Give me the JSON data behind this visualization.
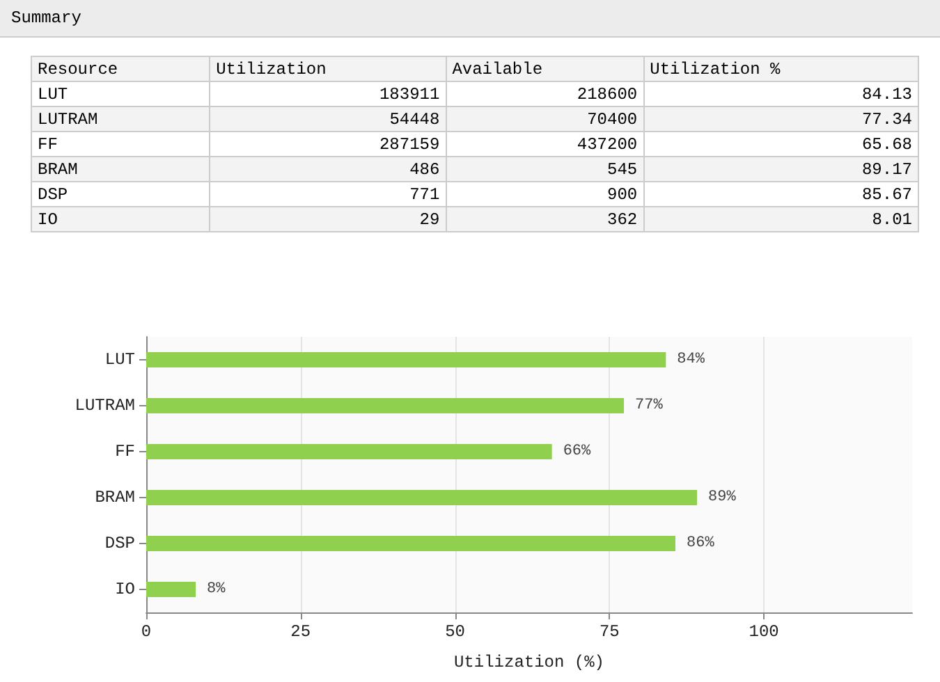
{
  "chart_data": [
    {
      "type": "other",
      "title": "Summary",
      "annotations": [
        "Resource",
        "Utilization",
        "Available",
        "Utilization %",
        "LUT",
        "183911",
        "218600",
        "84.13",
        "LUTRAM",
        "54448",
        "70400",
        "77.34",
        "FF",
        "287159",
        "437200",
        "65.68",
        "BRAM",
        "486",
        "545",
        "89.17",
        "DSP",
        "771",
        "900",
        "85.67",
        "IO",
        "29",
        "362",
        "8.01"
      ]
    },
    {
      "type": "bar",
      "orientation": "horizontal",
      "categories": [
        "LUT",
        "LUTRAM",
        "FF",
        "BRAM",
        "DSP",
        "IO"
      ],
      "values": [
        84.13,
        77.34,
        65.68,
        89.17,
        85.67,
        8.01
      ],
      "value_labels": [
        "84%",
        "77%",
        "66%",
        "89%",
        "86%",
        "8%"
      ],
      "color": "#8fd14f",
      "xlabel": "Utilization (%)",
      "xlim": [
        0,
        124
      ],
      "xticks": [
        0,
        25,
        50,
        75,
        100
      ],
      "grid": "x"
    }
  ]
}
